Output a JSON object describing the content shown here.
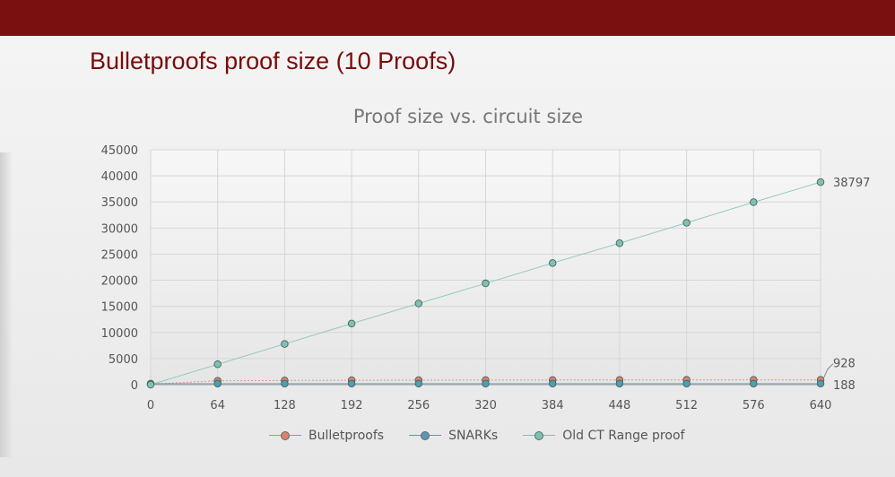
{
  "slide": {
    "title": "Bulletproofs proof size (10 Proofs)"
  },
  "colors": {
    "topbar": "#7a1010",
    "title": "#7a0b0b",
    "bulletproofs": "#d9826a",
    "snarks": "#4f9cb4",
    "old_ct": "#7cc2b4"
  },
  "chart_data": {
    "type": "line",
    "title": "Proof size vs. circuit size",
    "x": [
      0,
      64,
      128,
      192,
      256,
      320,
      384,
      448,
      512,
      576,
      640
    ],
    "x_tick_labels": [
      "0",
      "64",
      "128",
      "192",
      "256",
      "320",
      "384",
      "448",
      "512",
      "576",
      "640"
    ],
    "ylim": [
      0,
      45000
    ],
    "y_ticks": [
      0,
      5000,
      10000,
      15000,
      20000,
      25000,
      30000,
      35000,
      40000,
      45000
    ],
    "y_tick_labels": [
      "0",
      "5000",
      "10000",
      "15000",
      "20000",
      "25000",
      "30000",
      "35000",
      "40000",
      "45000"
    ],
    "grid": true,
    "legend_position": "bottom",
    "series": [
      {
        "name": "Bulletproofs",
        "color": "#d9826a",
        "values": [
          100,
          740,
          800,
          840,
          860,
          880,
          890,
          905,
          915,
          920,
          928
        ]
      },
      {
        "name": "SNARKs",
        "color": "#4f9cb4",
        "values": [
          188,
          188,
          188,
          188,
          188,
          188,
          188,
          188,
          188,
          188,
          188
        ]
      },
      {
        "name": "Old CT Range proof",
        "color": "#7cc2b4",
        "values": [
          0,
          3900,
          7800,
          11700,
          15550,
          19400,
          23300,
          27100,
          31000,
          34950,
          38797
        ]
      }
    ],
    "data_labels": [
      {
        "series": "Old CT Range proof",
        "x": 640,
        "text": "38797"
      },
      {
        "series": "Bulletproofs",
        "x": 640,
        "text": "928"
      },
      {
        "series": "SNARKs",
        "x": 640,
        "text": "188"
      }
    ]
  }
}
